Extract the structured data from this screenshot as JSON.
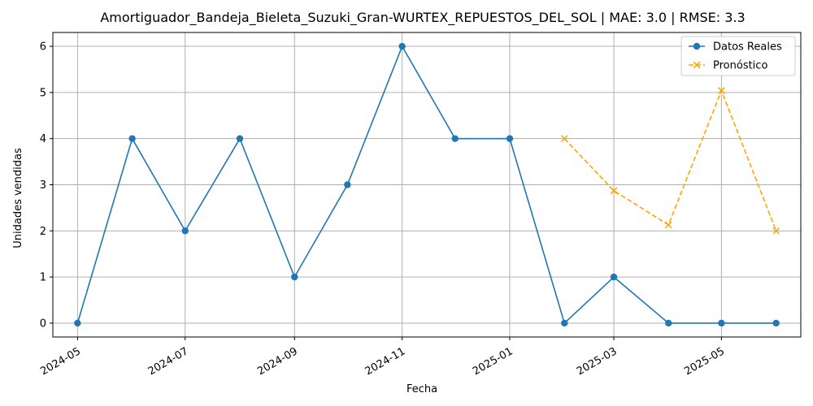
{
  "chart_data": {
    "type": "line",
    "title": "Amortiguador_Bandeja_Bieleta_Suzuki_Gran-WURTEX_REPUESTOS_DEL_SOL | MAE: 3.0 | RMSE: 3.3",
    "xlabel": "Fecha",
    "ylabel": "Unidades vendidas",
    "grid": true,
    "legend_position": "top-right",
    "xlim": [
      "2024-04-17",
      "2025-06-15"
    ],
    "ylim": [
      -0.3,
      6.3
    ],
    "x_ticks": [
      "2024-05",
      "2024-07",
      "2024-09",
      "2024-11",
      "2025-01",
      "2025-03",
      "2025-05"
    ],
    "y_ticks": [
      "0",
      "1",
      "2",
      "3",
      "4",
      "5",
      "6"
    ],
    "series": [
      {
        "name": "Datos Reales",
        "color": "#1f77b4",
        "marker": "circle",
        "line": "solid",
        "x": [
          "2024-05-01",
          "2024-06-01",
          "2024-07-01",
          "2024-08-01",
          "2024-09-01",
          "2024-10-01",
          "2024-11-01",
          "2024-12-01",
          "2025-01-01",
          "2025-02-01",
          "2025-03-01",
          "2025-04-01",
          "2025-05-01",
          "2025-06-01"
        ],
        "y": [
          0,
          4,
          2,
          4,
          1,
          3,
          6,
          4,
          4,
          0,
          1,
          0,
          0,
          0
        ]
      },
      {
        "name": "Pronóstico",
        "color": "#ffa500",
        "marker": "x",
        "line": "dashed",
        "x": [
          "2025-02-01",
          "2025-03-01",
          "2025-04-01",
          "2025-05-01",
          "2025-06-01"
        ],
        "y": [
          4.0,
          2.87,
          2.13,
          5.04,
          2.0
        ]
      }
    ]
  }
}
